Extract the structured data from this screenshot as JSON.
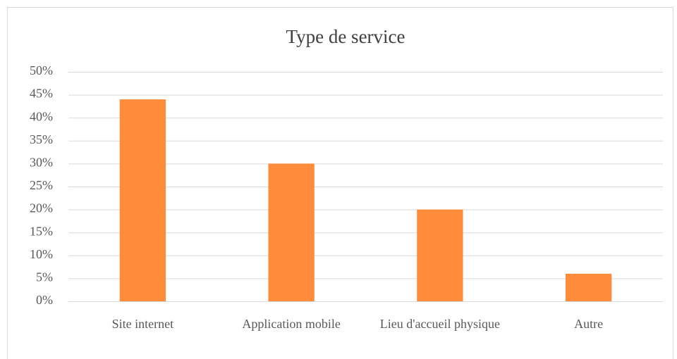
{
  "chart_data": {
    "type": "bar",
    "title": "Type de service",
    "categories": [
      "Site internet",
      "Application mobile",
      "Lieu d'accueil physique",
      "Autre"
    ],
    "values": [
      44,
      30,
      20,
      6
    ],
    "color": "#ff8c3a",
    "ylim": [
      0,
      50
    ],
    "yticks": [
      {
        "value": 0,
        "label": "0%"
      },
      {
        "value": 5,
        "label": "5%"
      },
      {
        "value": 10,
        "label": "10%"
      },
      {
        "value": 15,
        "label": "15%"
      },
      {
        "value": 20,
        "label": "20%"
      },
      {
        "value": 25,
        "label": "25%"
      },
      {
        "value": 30,
        "label": "30%"
      },
      {
        "value": 35,
        "label": "35%"
      },
      {
        "value": 40,
        "label": "40%"
      },
      {
        "value": 45,
        "label": "45%"
      },
      {
        "value": 50,
        "label": "50%"
      }
    ],
    "grid": true
  }
}
